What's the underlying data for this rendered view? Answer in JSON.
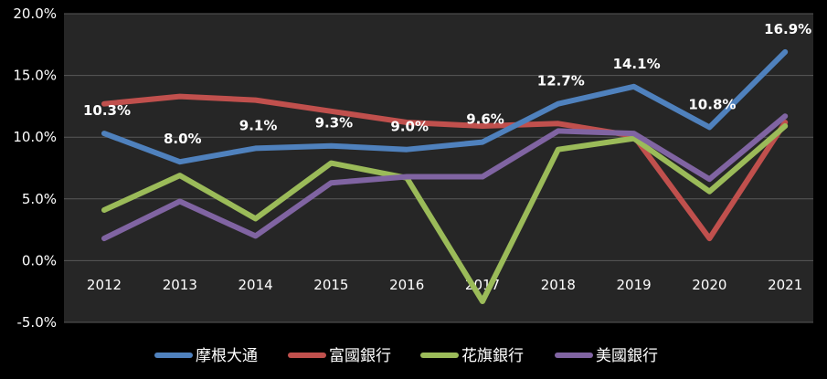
{
  "chart_data": {
    "type": "line",
    "title": "",
    "xlabel": "",
    "ylabel": "",
    "categories": [
      "2012",
      "2013",
      "2014",
      "2015",
      "2016",
      "2017",
      "2018",
      "2019",
      "2020",
      "2021"
    ],
    "ylim": [
      -5,
      20
    ],
    "yticks": [
      -5,
      0,
      5,
      10,
      15,
      20
    ],
    "ytick_labels": [
      "-5.0%",
      "0.0%",
      "5.0%",
      "10.0%",
      "15.0%",
      "20.0%"
    ],
    "grid": true,
    "legend_position": "bottom",
    "series": [
      {
        "name": "摩根大通",
        "color": "#4f81bd",
        "values": [
          10.3,
          8.0,
          9.1,
          9.3,
          9.0,
          9.6,
          12.7,
          14.1,
          10.8,
          16.9
        ],
        "data_labels": [
          "10.3%",
          "8.0%",
          "9.1%",
          "9.3%",
          "9.0%",
          "9.6%",
          "12.7%",
          "14.1%",
          "10.8%",
          "16.9%"
        ]
      },
      {
        "name": "富國銀行",
        "color": "#c0504d",
        "values": [
          12.7,
          13.3,
          13.0,
          12.1,
          11.2,
          10.9,
          11.1,
          10.1,
          1.8,
          11.2
        ]
      },
      {
        "name": "花旗銀行",
        "color": "#9bbb59",
        "values": [
          4.1,
          6.9,
          3.4,
          7.9,
          6.7,
          -3.3,
          9.0,
          9.9,
          5.6,
          10.9
        ]
      },
      {
        "name": "美國銀行",
        "color": "#8064a2",
        "values": [
          1.8,
          4.8,
          2.0,
          6.3,
          6.8,
          6.8,
          10.5,
          10.3,
          6.6,
          11.7
        ]
      }
    ]
  }
}
